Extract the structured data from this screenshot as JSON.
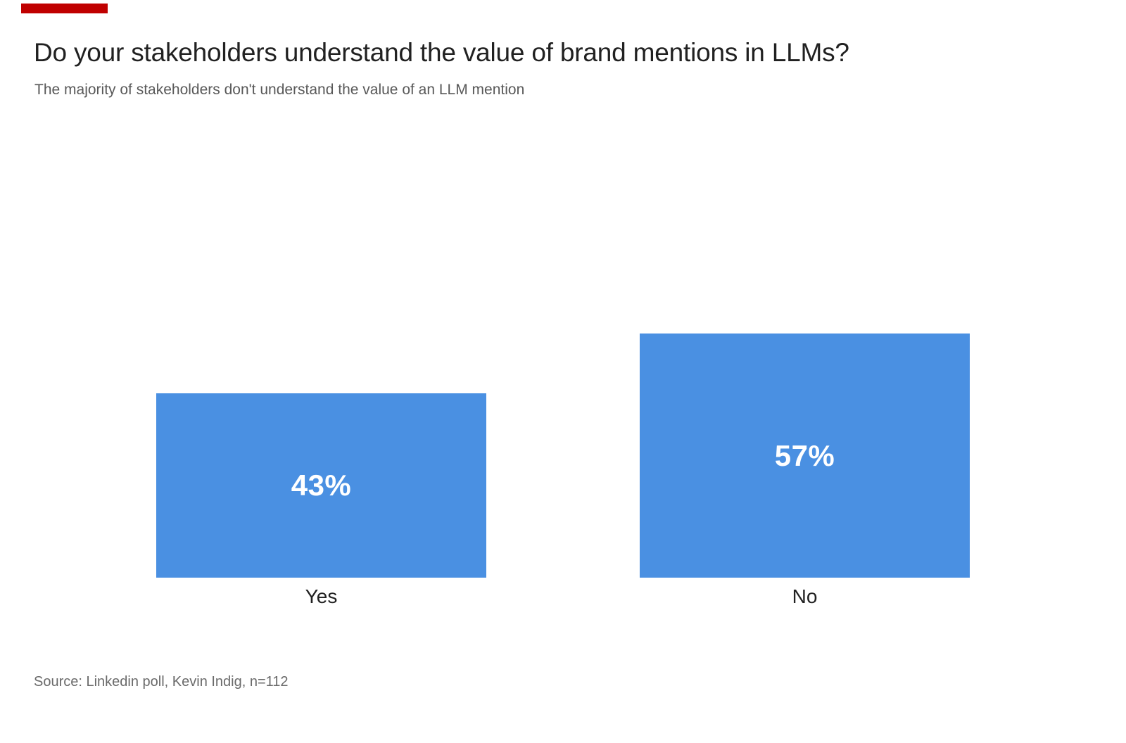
{
  "page": {
    "background_color": "#ffffff",
    "accent_bar_color": "#c00000"
  },
  "header": {
    "title": "Do your stakeholders understand the value of brand mentions in LLMs?",
    "subtitle": "The majority of stakeholders don't understand the value of an LLM mention"
  },
  "chart_data": {
    "type": "bar",
    "title": "Do your stakeholders understand the value of brand mentions in LLMs?",
    "subtitle": "The majority of stakeholders don't understand the value of an LLM mention",
    "categories": [
      "Yes",
      "No"
    ],
    "values": [
      43,
      57
    ],
    "value_labels": [
      "43%",
      "57%"
    ],
    "unit": "percent",
    "bar_color": "#4a90e2",
    "value_label_color": "#ffffff",
    "category_label_color": "#212121",
    "grid": false,
    "axes_visible": false,
    "legend_position": "none",
    "value_axis_range": [
      0,
      60
    ]
  },
  "footer": {
    "source": "Source: Linkedin poll, Kevin Indig, n=112"
  }
}
